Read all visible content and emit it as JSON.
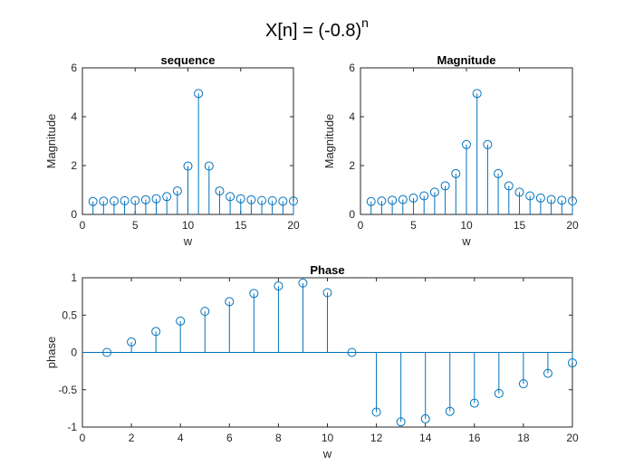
{
  "figure": {
    "title_base": "X[n] = (-0.8)",
    "title_sup": "n",
    "colors": {
      "stem": "#0072BD",
      "axis": "#262626",
      "background": "#ffffff"
    }
  },
  "chart_data": [
    {
      "type": "stem",
      "title": "sequence",
      "xlabel": "w",
      "ylabel": "Magnitude",
      "xlim": [
        0,
        20
      ],
      "ylim": [
        0,
        6
      ],
      "xticks": [
        0,
        5,
        10,
        15,
        20
      ],
      "yticks": [
        0,
        2,
        4,
        6
      ],
      "xtick_labels": [
        "0",
        "5",
        "10",
        "15",
        "20"
      ],
      "ytick_labels": [
        "0",
        "2",
        "4",
        "6"
      ],
      "grid": false,
      "x": [
        1,
        2,
        3,
        4,
        5,
        6,
        7,
        8,
        9,
        10,
        11,
        12,
        13,
        14,
        15,
        16,
        17,
        18,
        19,
        20
      ],
      "y": [
        0.53,
        0.54,
        0.55,
        0.56,
        0.57,
        0.6,
        0.64,
        0.73,
        0.96,
        1.98,
        4.95,
        1.98,
        0.96,
        0.73,
        0.64,
        0.6,
        0.57,
        0.56,
        0.54,
        0.55
      ]
    },
    {
      "type": "stem",
      "title": "Magnitude",
      "xlabel": "w",
      "ylabel": "Magnitude",
      "xlim": [
        0,
        20
      ],
      "ylim": [
        0,
        6
      ],
      "xticks": [
        0,
        5,
        10,
        15,
        20
      ],
      "yticks": [
        0,
        2,
        4,
        6
      ],
      "xtick_labels": [
        "0",
        "5",
        "10",
        "15",
        "20"
      ],
      "ytick_labels": [
        "0",
        "2",
        "4",
        "6"
      ],
      "grid": false,
      "x": [
        1,
        2,
        3,
        4,
        5,
        6,
        7,
        8,
        9,
        10,
        11,
        12,
        13,
        14,
        15,
        16,
        17,
        18,
        19,
        20
      ],
      "y": [
        0.53,
        0.55,
        0.58,
        0.61,
        0.67,
        0.76,
        0.91,
        1.17,
        1.67,
        2.86,
        4.95,
        2.86,
        1.67,
        1.17,
        0.91,
        0.76,
        0.67,
        0.61,
        0.58,
        0.55
      ]
    },
    {
      "type": "stem",
      "title": "Phase",
      "xlabel": "w",
      "ylabel": "phase",
      "xlim": [
        0,
        20
      ],
      "ylim": [
        -1,
        1
      ],
      "xticks": [
        0,
        2,
        4,
        6,
        8,
        10,
        12,
        14,
        16,
        18,
        20
      ],
      "yticks": [
        -1,
        -0.5,
        0,
        0.5,
        1
      ],
      "xtick_labels": [
        "0",
        "2",
        "4",
        "6",
        "8",
        "10",
        "12",
        "14",
        "16",
        "18",
        "20"
      ],
      "ytick_labels": [
        "-1",
        "-0.5",
        "0",
        "0.5",
        "1"
      ],
      "grid": false,
      "x": [
        1,
        2,
        3,
        4,
        5,
        6,
        7,
        8,
        9,
        10,
        11,
        12,
        13,
        14,
        15,
        16,
        17,
        18,
        19,
        20
      ],
      "y": [
        0.0,
        0.14,
        0.28,
        0.42,
        0.55,
        0.68,
        0.79,
        0.89,
        0.93,
        0.8,
        0.0,
        -0.8,
        -0.93,
        -0.89,
        -0.79,
        -0.68,
        -0.55,
        -0.42,
        -0.28,
        -0.14
      ]
    }
  ]
}
